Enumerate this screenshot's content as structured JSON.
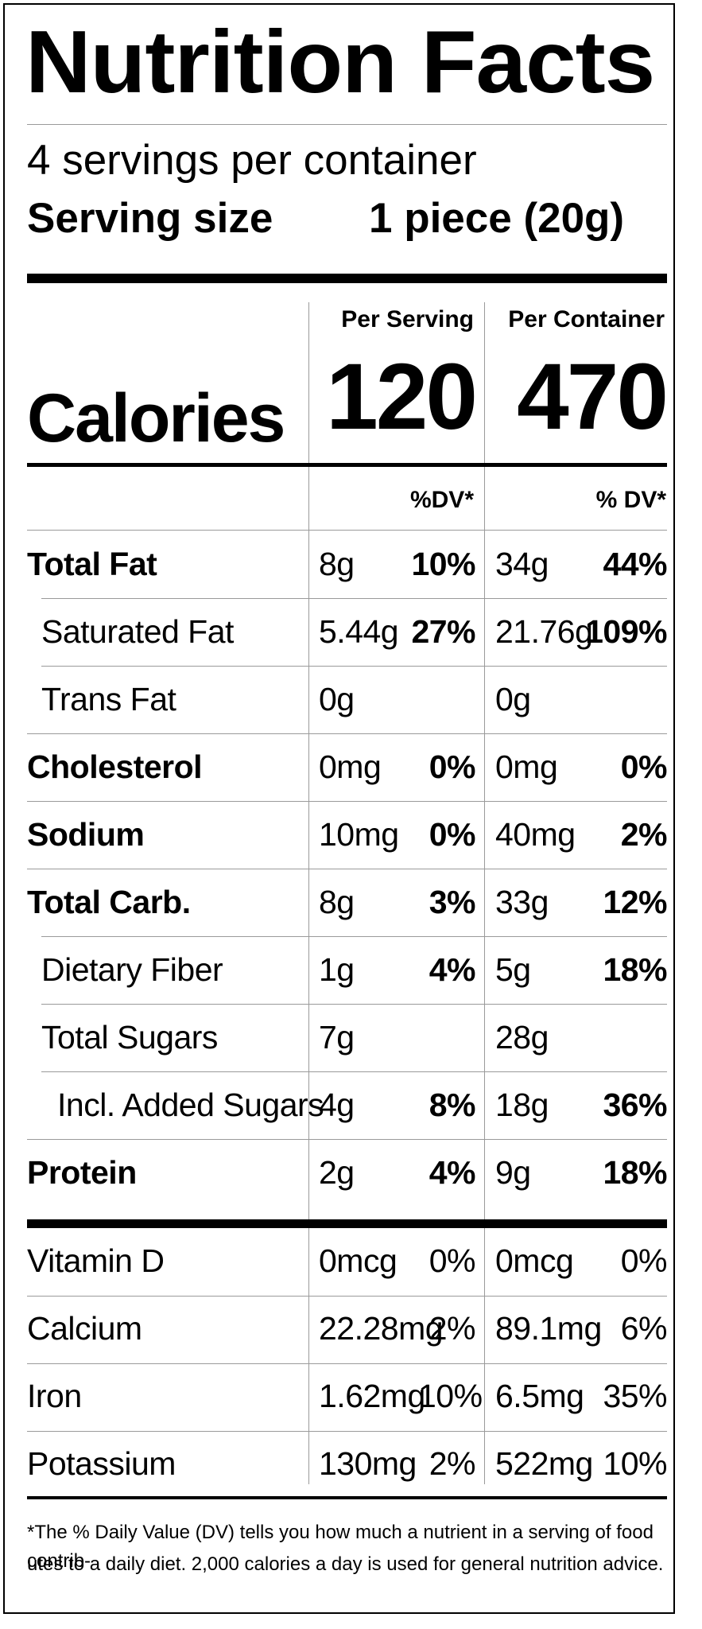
{
  "header": {
    "title": "Nutrition Facts",
    "servings_per_container": "4 servings per container",
    "serving_size_label": "Serving size",
    "serving_size_value": "1 piece (20g)"
  },
  "columns": {
    "per_serving": "Per Serving",
    "per_container": "Per Container",
    "dv_per_serving": "%DV*",
    "dv_per_container": "% DV*"
  },
  "calories": {
    "label": "Calories",
    "per_serving": "120",
    "per_container": "470"
  },
  "nutrients": [
    {
      "name": "Total Fat",
      "bold": true,
      "indent": 0,
      "serving_amount": "8g",
      "serving_dv": "10%",
      "container_amount": "34g",
      "container_dv": "44%"
    },
    {
      "name": "Saturated Fat",
      "bold": false,
      "indent": 1,
      "serving_amount": "5.44g",
      "serving_dv": "27%",
      "container_amount": "21.76g",
      "container_dv": "109%"
    },
    {
      "name": "Trans Fat",
      "bold": false,
      "indent": 1,
      "serving_amount": "0g",
      "serving_dv": "",
      "container_amount": "0g",
      "container_dv": ""
    },
    {
      "name": "Cholesterol",
      "bold": true,
      "indent": 0,
      "serving_amount": "0mg",
      "serving_dv": "0%",
      "container_amount": "0mg",
      "container_dv": "0%"
    },
    {
      "name": "Sodium",
      "bold": true,
      "indent": 0,
      "serving_amount": "10mg",
      "serving_dv": "0%",
      "container_amount": "40mg",
      "container_dv": "2%"
    },
    {
      "name": "Total Carb.",
      "bold": true,
      "indent": 0,
      "serving_amount": "8g",
      "serving_dv": "3%",
      "container_amount": "33g",
      "container_dv": "12%"
    },
    {
      "name": "Dietary Fiber",
      "bold": false,
      "indent": 1,
      "serving_amount": "1g",
      "serving_dv": "4%",
      "container_amount": "5g",
      "container_dv": "18%"
    },
    {
      "name": "Total Sugars",
      "bold": false,
      "indent": 1,
      "serving_amount": "7g",
      "serving_dv": "",
      "container_amount": "28g",
      "container_dv": ""
    },
    {
      "name": "Incl. Added Sugars",
      "bold": false,
      "indent": 2,
      "serving_amount": "4g",
      "serving_dv": "8%",
      "container_amount": "18g",
      "container_dv": "36%"
    },
    {
      "name": "Protein",
      "bold": true,
      "indent": 0,
      "serving_amount": "2g",
      "serving_dv": "4%",
      "container_amount": "9g",
      "container_dv": "18%"
    }
  ],
  "vitamins": [
    {
      "name": "Vitamin D",
      "serving_amount": "0mcg",
      "serving_dv": "0%",
      "container_amount": "0mcg",
      "container_dv": "0%"
    },
    {
      "name": "Calcium",
      "serving_amount": "22.28mg",
      "serving_dv": "2%",
      "container_amount": "89.1mg",
      "container_dv": "6%"
    },
    {
      "name": "Iron",
      "serving_amount": "1.62mg",
      "serving_dv": "10%",
      "container_amount": "6.5mg",
      "container_dv": "35%"
    },
    {
      "name": "Potassium",
      "serving_amount": "130mg",
      "serving_dv": "2%",
      "container_amount": "522mg",
      "container_dv": "10%"
    }
  ],
  "footnote": {
    "line1": "*The % Daily Value (DV) tells you how much a nutrient in a serving of food contrib-",
    "line2": "utes to a daily diet. 2,000 calories a day is used for general nutrition advice."
  }
}
